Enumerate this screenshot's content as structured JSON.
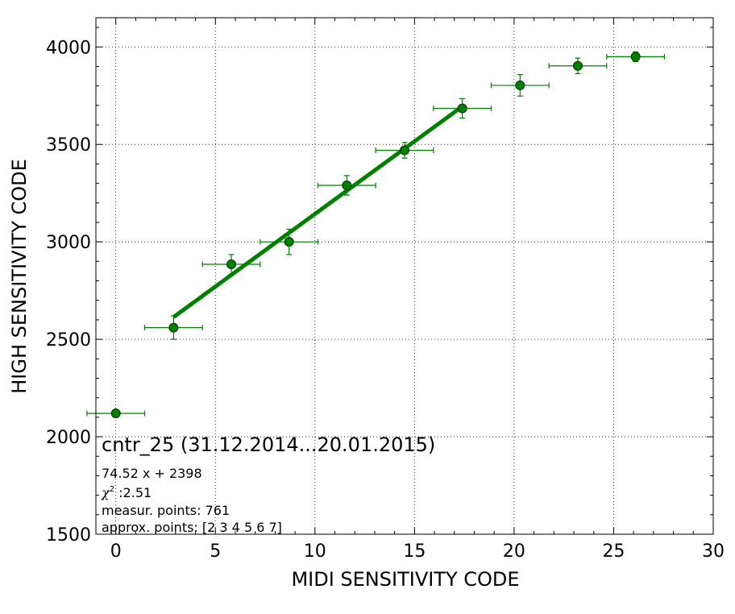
{
  "chart_data": {
    "type": "scatter",
    "title": "",
    "xlabel": "MIDI SENSITIVITY CODE",
    "ylabel": "HIGH SENSITIVITY CODE",
    "xlim": [
      -1,
      30
    ],
    "ylim": [
      1500,
      4150
    ],
    "xticks": [
      0,
      5,
      10,
      15,
      20,
      25,
      30
    ],
    "yticks": [
      1500,
      2000,
      2500,
      3000,
      3500,
      4000
    ],
    "grid": true,
    "colors": {
      "points": "#007f00",
      "fit": "#008000",
      "marker_edge": "#003300"
    },
    "points": [
      {
        "x": 0,
        "y": 2120,
        "xerr": 1.45,
        "yerr": 0
      },
      {
        "x": 2.9,
        "y": 2560,
        "xerr": 1.45,
        "yerr": 60
      },
      {
        "x": 5.8,
        "y": 2885,
        "xerr": 1.45,
        "yerr": 50
      },
      {
        "x": 8.7,
        "y": 3000,
        "xerr": 1.45,
        "yerr": 65
      },
      {
        "x": 11.6,
        "y": 3290,
        "xerr": 1.45,
        "yerr": 50
      },
      {
        "x": 14.5,
        "y": 3470,
        "xerr": 1.45,
        "yerr": 40
      },
      {
        "x": 17.4,
        "y": 3685,
        "xerr": 1.45,
        "yerr": 50
      },
      {
        "x": 20.3,
        "y": 3803,
        "xerr": 1.45,
        "yerr": 55
      },
      {
        "x": 23.2,
        "y": 3903,
        "xerr": 1.45,
        "yerr": 40
      },
      {
        "x": 26.1,
        "y": 3950,
        "xerr": 1.45,
        "yerr": 25
      }
    ],
    "fit_line": {
      "slope": 74.52,
      "intercept": 2398,
      "x_range": [
        2.9,
        17.4
      ]
    },
    "annotation": {
      "title": "cntr_25 (31.12.2014...20.01.2015)",
      "equation": "74.52 x + 2398",
      "chi2_symbol": "χ",
      "chi2_sup": "2",
      "chi2_value": " :2.51",
      "measur_points": "measur. points: 761",
      "approx_points": "approx. points: [2 3 4 5 6 7]"
    }
  }
}
